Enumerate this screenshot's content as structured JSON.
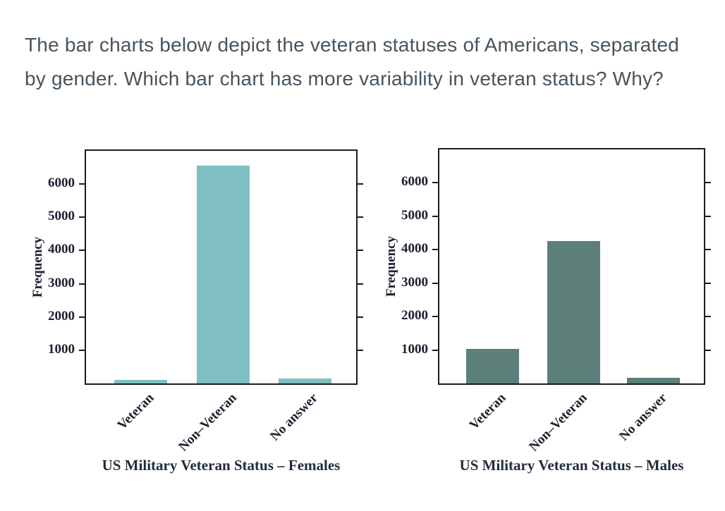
{
  "question": {
    "text": "The bar charts below depict the veteran statuses of Americans, separated by gender. Which bar chart has more variability in veteran status? Why?"
  },
  "colors": {
    "females_bar": "#7fbfc1",
    "males_bar": "#5d7f7a",
    "frame": "#1c1c1c",
    "question_text": "#46545f",
    "axis_text": "#1c2130"
  },
  "chart_data": [
    {
      "type": "bar",
      "title": "US Military Veteran Status – Females",
      "ylabel": "Frequency",
      "xlabel": "",
      "categories": [
        "Veteran",
        "Non–Veteran",
        "No answer"
      ],
      "values": [
        100,
        6550,
        150
      ],
      "yticks": [
        1000,
        2000,
        3000,
        4000,
        5000,
        6000
      ],
      "ylim": [
        0,
        7000
      ],
      "bar_color": "#7fbfc1",
      "grid": false,
      "legend": "none"
    },
    {
      "type": "bar",
      "title": "US Military Veteran Status – Males",
      "ylabel": "Frequency",
      "xlabel": "",
      "categories": [
        "Veteran",
        "Non–Veteran",
        "No answer"
      ],
      "values": [
        1030,
        4250,
        160
      ],
      "yticks": [
        1000,
        2000,
        3000,
        4000,
        5000,
        6000
      ],
      "ylim": [
        0,
        7000
      ],
      "bar_color": "#5d7f7a",
      "grid": false,
      "legend": "none"
    }
  ]
}
